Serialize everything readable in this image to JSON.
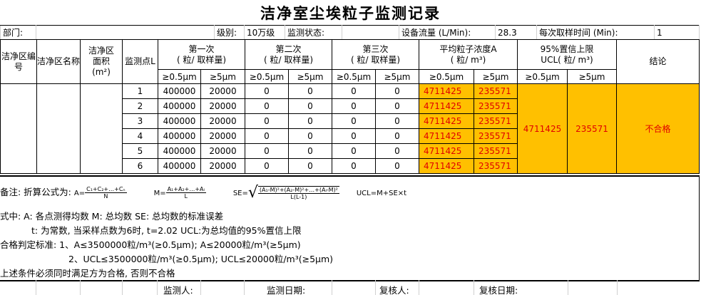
{
  "title": "洁净室尘埃粒子监测记录",
  "info": {
    "dept_label": "部门:",
    "dept_value": "",
    "grade_label": "级别:",
    "grade_value": "10万级",
    "state_label": "监测状态:",
    "state_value": "",
    "flow_label": "设备流量 (L/Min):",
    "flow_value": "28.3",
    "time_label": "每次取样时间 (Min):",
    "time_value": "1"
  },
  "headers": {
    "zone_no": "洁净区编号",
    "zone_name": "洁净区名称",
    "area": "洁净区面积",
    "area_unit": "(m²)",
    "point": "监测点L",
    "first": "第一次",
    "second": "第二次",
    "third": "第三次",
    "per_sample": "( 粒/ 取样量)",
    "avg": "平均粒子浓度A",
    "avg_unit": "( 粒/ m³)",
    "ucl": "95%置信上限",
    "ucl_unit": "UCL( 粒/ m³)",
    "result": "结论",
    "s05": "≥0.5μm",
    "s5": "≥5μm"
  },
  "rows": [
    {
      "point": "1",
      "r1a": "400000",
      "r1b": "20000",
      "r2a": "0",
      "r2b": "0",
      "r3a": "0",
      "r3b": "0",
      "avga": "4711425",
      "avgb": "235571"
    },
    {
      "point": "2",
      "r1a": "400000",
      "r1b": "20000",
      "r2a": "0",
      "r2b": "0",
      "r3a": "0",
      "r3b": "0",
      "avga": "4711425",
      "avgb": "235571"
    },
    {
      "point": "3",
      "r1a": "400000",
      "r1b": "20000",
      "r2a": "0",
      "r2b": "0",
      "r3a": "0",
      "r3b": "0",
      "avga": "4711425",
      "avgb": "235571"
    },
    {
      "point": "4",
      "r1a": "400000",
      "r1b": "20000",
      "r2a": "0",
      "r2b": "0",
      "r3a": "0",
      "r3b": "0",
      "avga": "4711425",
      "avgb": "235571"
    },
    {
      "point": "5",
      "r1a": "400000",
      "r1b": "20000",
      "r2a": "0",
      "r2b": "0",
      "r3a": "0",
      "r3b": "0",
      "avga": "4711425",
      "avgb": "235571"
    },
    {
      "point": "6",
      "r1a": "400000",
      "r1b": "20000",
      "r2a": "0",
      "r2b": "0",
      "r3a": "0",
      "r3b": "0",
      "avga": "4711425",
      "avgb": "235571"
    }
  ],
  "ucl_values": {
    "a": "4711425",
    "b": "235571"
  },
  "result": "不合格",
  "notes": {
    "formula_label": "备注: 折算公式为:",
    "fa_lhs": "A=",
    "fa_num": "C₁+C₂+…+Cₙ",
    "fa_den": "N",
    "fm_lhs": "M=",
    "fm_num": "A₁+A₂+…+Aₗ",
    "fm_den": "L",
    "se_lhs": "SE=",
    "se_num": "(A₁-M)²+(A₂-M)²+…+(Aₗ-M)²",
    "se_den": "L(L-1)",
    "ucl_formula": "UCL=M+SE×t",
    "line2": "式中: A: 各点测得均数      M: 总均数       SE: 总均数的标准误差",
    "line3": "t: 为常数, 当采样点数为6时, t=2.02  UCL:为总均值的95%置信上限",
    "line4": "合格判定标准: 1、A≤3500000粒/m³(≥0.5μm); A≤20000粒/m³(≥5μm)",
    "line5": "2、UCL≤3500000粒/m³(≥0.5μm); UCL≤20000粒/m³(≥5μm)",
    "line6": "上述条件必须同时满足方为合格, 否则不合格"
  },
  "footer": {
    "monitor": "监测人:",
    "monitor_date": "监测日期:",
    "reviewer": "复核人:",
    "review_date": "复核日期:"
  },
  "colors": {
    "highlight": "#ffc000",
    "value_text": "#e00000"
  }
}
